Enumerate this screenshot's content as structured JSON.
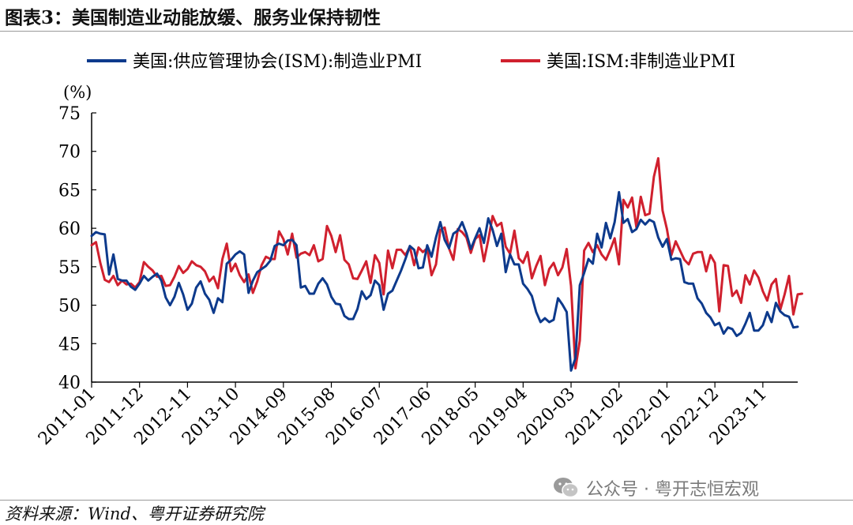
{
  "title": "图表3：美国制造业动能放缓、服务业保持韧性",
  "source": "资料来源：Wind、粤开证券研究院",
  "watermark": "公众号 · 粤开志恒宏观",
  "colors": {
    "manufacturing": "#0d3a8c",
    "non_manufacturing": "#d0202e"
  },
  "chart_data": {
    "type": "line",
    "title": "",
    "xlabel": "",
    "ylabel": "(%)",
    "ylim": [
      40,
      75
    ],
    "yticks": [
      40,
      45,
      50,
      55,
      60,
      65,
      70,
      75
    ],
    "grid": false,
    "legend_position": "top",
    "x_tick_labels": [
      "2011-01",
      "2011-12",
      "2012-11",
      "2013-10",
      "2014-09",
      "2015-08",
      "2016-07",
      "2017-06",
      "2018-05",
      "2019-04",
      "2020-03",
      "2021-02",
      "2022-01",
      "2022-12",
      "2023-11"
    ],
    "x_start": "2011-01",
    "x_end": "2024-05",
    "series": [
      {
        "name": "美国:供应管理协会(ISM):制造业PMI",
        "color": "#0d3a8c",
        "values": [
          59.0,
          59.5,
          59.3,
          59.2,
          54.0,
          56.6,
          53.4,
          53.2,
          53.2,
          52.4,
          52.0,
          52.8,
          53.8,
          53.2,
          53.7,
          54.1,
          53.2,
          51.0,
          50.0,
          51.1,
          52.9,
          51.4,
          49.4,
          50.2,
          52.3,
          53.1,
          51.5,
          50.7,
          49.0,
          50.9,
          50.4,
          55.4,
          55.9,
          56.6,
          57.0,
          56.6,
          51.6,
          53.2,
          54.3,
          54.7,
          55.1,
          55.8,
          57.7,
          58.0,
          57.8,
          58.4,
          58.5,
          57.8,
          52.3,
          52.5,
          51.5,
          51.5,
          52.8,
          53.5,
          52.7,
          51.1,
          50.2,
          50.1,
          48.6,
          48.2,
          48.2,
          49.5,
          51.8,
          50.8,
          51.3,
          53.2,
          52.6,
          49.4,
          51.5,
          51.9,
          53.2,
          54.5,
          56.0,
          57.7,
          57.2,
          54.8,
          54.9,
          57.8,
          56.3,
          58.8,
          60.8,
          58.5,
          57.4,
          59.3,
          59.7,
          60.8,
          59.3,
          57.3,
          58.7,
          60.0,
          58.1,
          61.3,
          59.8,
          57.7,
          59.3,
          54.3,
          56.6,
          55.3,
          55.3,
          52.8,
          52.1,
          51.2,
          49.1,
          47.8,
          48.3,
          47.8,
          48.1,
          50.9,
          50.1,
          49.1,
          41.5,
          43.1,
          52.6,
          54.2,
          56.0,
          55.4,
          59.3,
          57.5,
          60.7,
          58.7,
          60.8,
          64.7,
          60.7,
          61.2,
          59.5,
          59.9,
          61.1,
          60.5,
          61.1,
          60.8,
          58.8,
          57.6,
          58.6,
          55.9,
          56.1,
          56.0,
          53.0,
          52.8,
          52.8,
          50.9,
          50.2,
          49.0,
          48.4,
          47.4,
          47.7,
          46.3,
          47.1,
          46.9,
          46.0,
          46.4,
          47.6,
          49.0,
          46.7,
          46.7,
          47.4,
          49.1,
          47.8,
          50.3,
          49.2,
          48.7,
          48.5,
          47.1,
          47.2
        ]
      },
      {
        "name": "美国:ISM:非制造业PMI",
        "color": "#d0202e",
        "values": [
          57.8,
          58.2,
          55.5,
          53.3,
          53.0,
          53.8,
          52.6,
          53.2,
          52.7,
          52.8,
          52.3,
          53.0,
          55.6,
          55.0,
          54.5,
          53.7,
          53.8,
          52.5,
          52.6,
          53.7,
          55.1,
          54.2,
          54.7,
          55.7,
          55.2,
          55.0,
          54.4,
          53.1,
          53.7,
          52.2,
          56.0,
          58.0,
          54.4,
          55.4,
          53.9,
          53.0,
          54.0,
          51.6,
          53.1,
          55.2,
          56.3,
          56.0,
          56.0,
          59.6,
          58.6,
          56.6,
          59.3,
          56.2,
          56.7,
          56.9,
          56.5,
          57.8,
          55.7,
          56.0,
          60.3,
          59.0,
          56.9,
          59.1,
          55.9,
          55.3,
          53.5,
          53.4,
          54.5,
          55.7,
          52.9,
          56.5,
          55.5,
          51.4,
          57.1,
          54.8,
          57.2,
          57.2,
          56.5,
          57.6,
          55.2,
          57.5,
          56.9,
          57.4,
          53.9,
          55.3,
          59.8,
          60.1,
          57.4,
          55.9,
          59.9,
          59.5,
          58.8,
          56.8,
          58.6,
          59.1,
          55.7,
          58.5,
          61.6,
          60.3,
          60.7,
          57.6,
          56.7,
          59.7,
          56.1,
          55.5,
          56.9,
          53.5,
          55.1,
          56.4,
          52.6,
          54.7,
          55.5,
          53.9,
          54.9,
          57.3,
          52.5,
          41.8,
          45.4,
          57.1,
          58.1,
          56.9,
          57.8,
          56.6,
          55.9,
          57.2,
          58.7,
          55.3,
          63.7,
          62.7,
          64.0,
          60.1,
          64.1,
          61.7,
          61.9,
          66.7,
          69.1,
          62.3,
          59.9,
          56.5,
          58.3,
          57.1,
          55.9,
          55.3,
          56.7,
          56.9,
          56.9,
          54.4,
          56.5,
          55.5,
          49.2,
          55.2,
          55.1,
          51.2,
          51.9,
          50.3,
          53.9,
          52.7,
          54.5,
          53.6,
          51.8,
          50.6,
          52.7,
          53.4,
          49.4,
          51.4,
          53.8,
          48.8,
          51.4,
          51.5
        ]
      }
    ]
  }
}
